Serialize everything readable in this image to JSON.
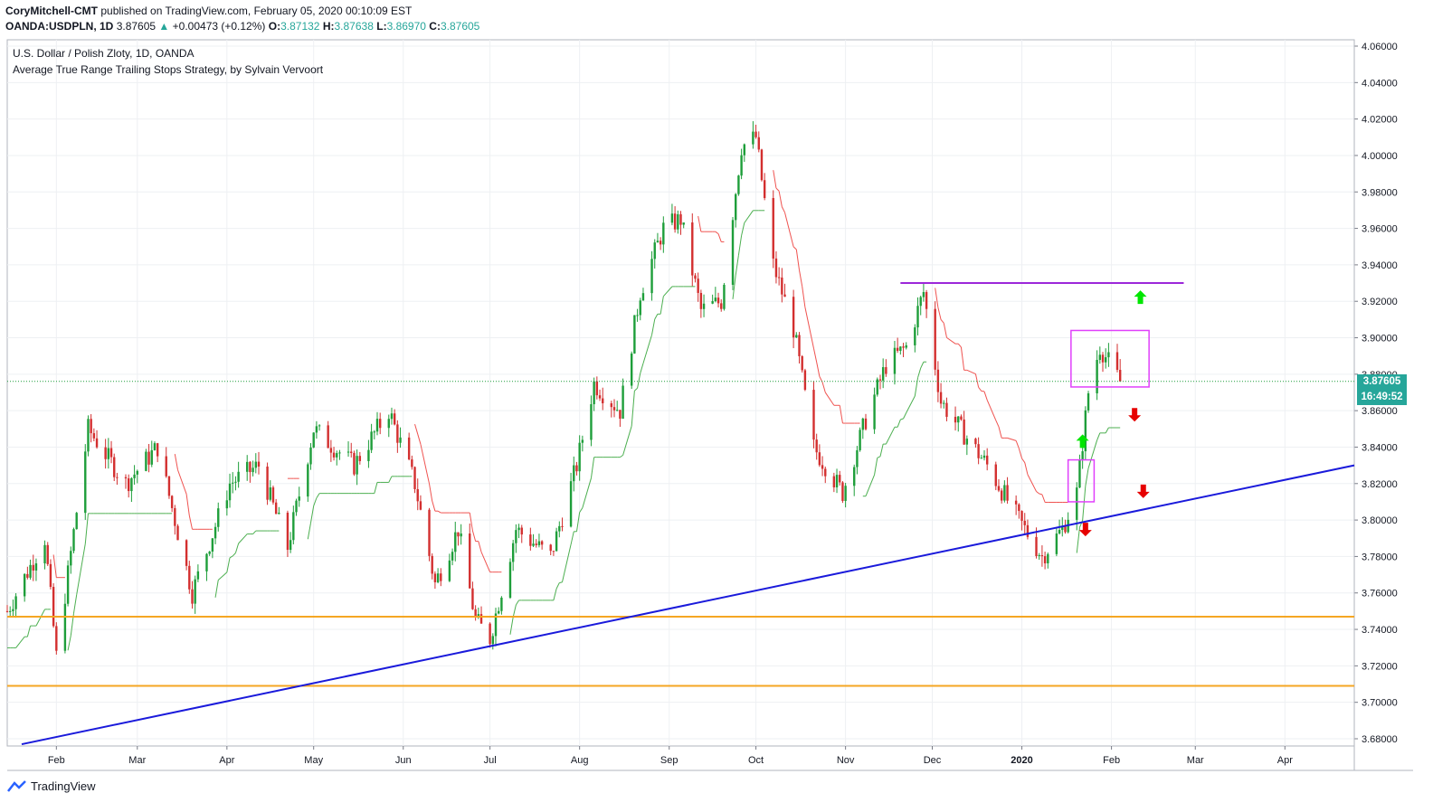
{
  "header": {
    "author": "CoryMitchell-CMT",
    "published": "published on TradingView.com, February 05, 2020 00:10:09 EST",
    "symbol": "OANDA:USDPLN, 1D",
    "last": "3.87605",
    "change": "+0.00473 (+0.12%)",
    "o_label": "O:",
    "o_value": "3.87132",
    "h_label": "H:",
    "h_value": "3.87638",
    "l_label": "L:",
    "l_value": "3.86970",
    "c_label": "C:",
    "c_value": "3.87605"
  },
  "legend": {
    "title": "U.S. Dollar / Polish Zloty, 1D, OANDA",
    "indicator": "Average True Range Trailing Stops Strategy, by Sylvain Vervoort"
  },
  "price_tag": "3.87605",
  "countdown_tag": "16:49:52",
  "footer": {
    "brand": "TradingView"
  },
  "colors": {
    "up": "#26a69a",
    "up_candle": "#1e9e3a",
    "down_candle": "#d32f2f",
    "trendline": "#1a1adb",
    "horizontal_support": "#f5a623",
    "resistance": "#9c27d9",
    "box": "#e040fb",
    "stop_green": "#4caf50",
    "stop_red": "#ef5350",
    "arrow_up": "#00e600",
    "arrow_down": "#e60000"
  },
  "chart_data": {
    "type": "candlestick",
    "title": "U.S. Dollar / Polish Zloty, 1D, OANDA",
    "ylim": [
      3.68,
      4.06
    ],
    "y_ticks": [
      "4.06000",
      "4.04000",
      "4.02000",
      "4.00000",
      "3.98000",
      "3.96000",
      "3.94000",
      "3.92000",
      "3.90000",
      "3.88000",
      "3.86000",
      "3.84000",
      "3.82000",
      "3.80000",
      "3.78000",
      "3.76000",
      "3.74000",
      "3.72000",
      "3.70000",
      "3.68000"
    ],
    "x_ticks": [
      "Feb",
      "Mar",
      "Apr",
      "May",
      "Jun",
      "Jul",
      "Aug",
      "Sep",
      "Oct",
      "Nov",
      "Dec",
      "2020",
      "Jan",
      "Feb",
      "Mar",
      "Apr"
    ],
    "x_tick_labels_shown": [
      "Feb",
      "Mar",
      "Apr",
      "May",
      "Jun",
      "Jul",
      "Aug",
      "Sep",
      "Oct",
      "Nov",
      "Dec",
      "2020",
      "Feb",
      "Mar",
      "Apr"
    ],
    "x_range": [
      "2019-01-15",
      "2020-04-25"
    ],
    "current_price": 3.87605,
    "key_closes": [
      {
        "date": "2019-01-15",
        "close": 3.75
      },
      {
        "date": "2019-01-28",
        "close": 3.79
      },
      {
        "date": "2019-02-01",
        "close": 3.725
      },
      {
        "date": "2019-02-12",
        "close": 3.85
      },
      {
        "date": "2019-02-25",
        "close": 3.82
      },
      {
        "date": "2019-03-08",
        "close": 3.84
      },
      {
        "date": "2019-03-20",
        "close": 3.76
      },
      {
        "date": "2019-04-02",
        "close": 3.82
      },
      {
        "date": "2019-04-12",
        "close": 3.83
      },
      {
        "date": "2019-04-22",
        "close": 3.785
      },
      {
        "date": "2019-05-01",
        "close": 3.85
      },
      {
        "date": "2019-05-15",
        "close": 3.83
      },
      {
        "date": "2019-05-27",
        "close": 3.86
      },
      {
        "date": "2019-06-05",
        "close": 3.82
      },
      {
        "date": "2019-06-12",
        "close": 3.765
      },
      {
        "date": "2019-06-20",
        "close": 3.795
      },
      {
        "date": "2019-06-26",
        "close": 3.745
      },
      {
        "date": "2019-07-01",
        "close": 3.735
      },
      {
        "date": "2019-07-10",
        "close": 3.795
      },
      {
        "date": "2019-07-22",
        "close": 3.78
      },
      {
        "date": "2019-07-31",
        "close": 3.83
      },
      {
        "date": "2019-08-06",
        "close": 3.875
      },
      {
        "date": "2019-08-15",
        "close": 3.86
      },
      {
        "date": "2019-08-22",
        "close": 3.925
      },
      {
        "date": "2019-08-30",
        "close": 3.96
      },
      {
        "date": "2019-09-05",
        "close": 3.965
      },
      {
        "date": "2019-09-12",
        "close": 3.915
      },
      {
        "date": "2019-09-19",
        "close": 3.92
      },
      {
        "date": "2019-09-26",
        "close": 4.005
      },
      {
        "date": "2019-10-01",
        "close": 4.01
      },
      {
        "date": "2019-10-07",
        "close": 3.94
      },
      {
        "date": "2019-10-14",
        "close": 3.905
      },
      {
        "date": "2019-10-21",
        "close": 3.84
      },
      {
        "date": "2019-10-31",
        "close": 3.815
      },
      {
        "date": "2019-11-08",
        "close": 3.855
      },
      {
        "date": "2019-11-15",
        "close": 3.885
      },
      {
        "date": "2019-11-22",
        "close": 3.895
      },
      {
        "date": "2019-11-28",
        "close": 3.925
      },
      {
        "date": "2019-12-04",
        "close": 3.865
      },
      {
        "date": "2019-12-13",
        "close": 3.845
      },
      {
        "date": "2019-12-20",
        "close": 3.83
      },
      {
        "date": "2019-12-31",
        "close": 3.8
      },
      {
        "date": "2020-01-08",
        "close": 3.78
      },
      {
        "date": "2020-01-15",
        "close": 3.795
      },
      {
        "date": "2020-01-20",
        "close": 3.815
      },
      {
        "date": "2020-01-24",
        "close": 3.87
      },
      {
        "date": "2020-01-28",
        "close": 3.895
      },
      {
        "date": "2020-02-04",
        "close": 3.876
      }
    ],
    "annotations": {
      "horizontal_support_levels": [
        3.747,
        3.709
      ],
      "resistance_level": 3.93,
      "resistance_range": [
        "2019-11-20",
        "2020-02-26"
      ],
      "trendline": [
        {
          "date": "2019-01-20",
          "price": 3.677
        },
        {
          "date": "2020-04-25",
          "price": 3.83
        }
      ],
      "boxes": [
        {
          "from": "2020-01-17",
          "to": "2020-01-26",
          "low": 3.81,
          "high": 3.833
        },
        {
          "from": "2020-01-18",
          "to": "2020-02-14",
          "low": 3.873,
          "high": 3.904
        }
      ],
      "arrows": [
        {
          "dir": "up",
          "date": "2020-01-22",
          "price": 3.843
        },
        {
          "dir": "down",
          "date": "2020-01-23",
          "price": 3.795
        },
        {
          "dir": "up",
          "date": "2020-02-11",
          "price": 3.922
        },
        {
          "dir": "down",
          "date": "2020-02-09",
          "price": 3.858
        },
        {
          "dir": "down",
          "date": "2020-02-12",
          "price": 3.816
        }
      ]
    }
  }
}
